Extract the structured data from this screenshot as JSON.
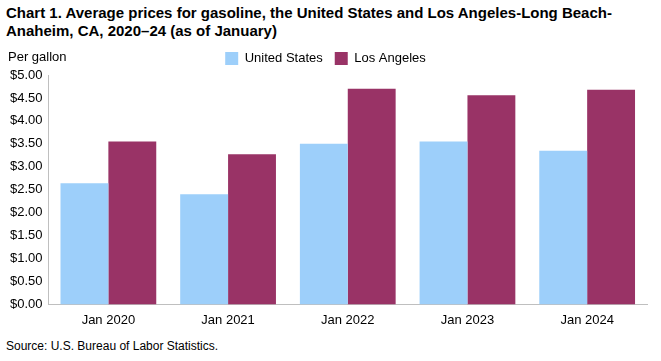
{
  "chart_data": {
    "type": "bar",
    "title": [
      "Chart 1. Average prices for gasoline, the United States and Los Angeles-Long Beach-",
      "Anaheim, CA, 2020–24 (as of January)"
    ],
    "y_label": "Per gallon",
    "source": "Source: U.S. Bureau of Labor Statistics.",
    "categories": [
      "Jan 2020",
      "Jan 2021",
      "Jan 2022",
      "Jan 2023",
      "Jan 2024"
    ],
    "series": [
      {
        "name": "United States",
        "color": "#9dcffa",
        "values": [
          2.64,
          2.4,
          3.5,
          3.55,
          3.35
        ]
      },
      {
        "name": "Los Angeles",
        "color": "#993366",
        "values": [
          3.55,
          3.27,
          4.7,
          4.56,
          4.68
        ]
      }
    ],
    "ylim": [
      0,
      5
    ],
    "yticks": [
      {
        "value": 0,
        "label": "$0.00"
      },
      {
        "value": 0.5,
        "label": "$0.50"
      },
      {
        "value": 1,
        "label": "$1.00"
      },
      {
        "value": 1.5,
        "label": "$1.50"
      },
      {
        "value": 2,
        "label": "$2.00"
      },
      {
        "value": 2.5,
        "label": "$2.50"
      },
      {
        "value": 3,
        "label": "$3.00"
      },
      {
        "value": 3.5,
        "label": "$3.50"
      },
      {
        "value": 4,
        "label": "$4.00"
      },
      {
        "value": 4.5,
        "label": "$4.50"
      },
      {
        "value": 5,
        "label": "$5.00"
      }
    ],
    "grid": false,
    "legend": "top"
  }
}
